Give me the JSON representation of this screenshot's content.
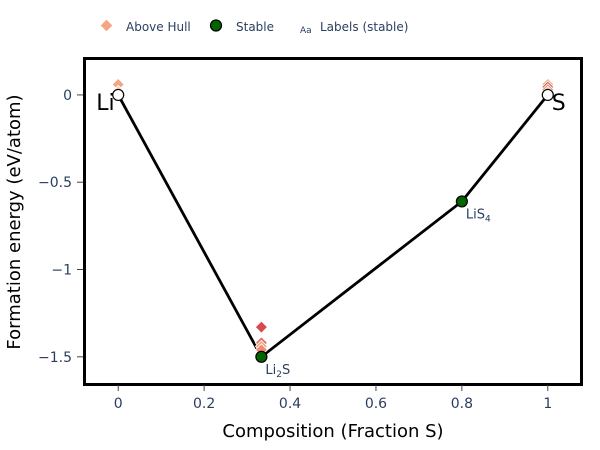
{
  "chart_data": {
    "type": "scatter",
    "xlabel": "Composition (Fraction S)",
    "ylabel": "Formation energy (eV/atom)",
    "xlim": [
      -0.075,
      1.075
    ],
    "ylim": [
      -1.65,
      0.2
    ],
    "x_ticks": [
      0,
      0.2,
      0.4,
      0.6,
      0.8,
      1
    ],
    "x_tick_labels": [
      "0",
      "0.2",
      "0.4",
      "0.6",
      "0.8",
      "1"
    ],
    "y_ticks": [
      0,
      -0.5,
      -1,
      -1.5
    ],
    "y_tick_labels": [
      "0",
      "−0.5",
      "−1",
      "−1.5"
    ],
    "grid": false,
    "legend_placement": "top-left",
    "legend": [
      {
        "label": "Above Hull",
        "marker": "diamond",
        "color": "#f4a582"
      },
      {
        "label": "Stable",
        "marker": "circle",
        "color": "#006400"
      },
      {
        "label": "Labels (stable)",
        "marker": "text",
        "glyph": "Aa"
      }
    ],
    "hull_line": {
      "x": [
        0,
        0.3333,
        0.8,
        1
      ],
      "y": [
        0,
        -1.5,
        -0.61,
        0
      ],
      "color": "#000000"
    },
    "series": [
      {
        "name": "Above Hull",
        "marker": "diamond",
        "points": [
          {
            "x": 0,
            "y": 0.06,
            "color": "#f4a582"
          },
          {
            "x": 0,
            "y": 0.02,
            "color": "#fbd3be"
          },
          {
            "x": 0.3333,
            "y": -1.33,
            "color": "#d6494e"
          },
          {
            "x": 0.3333,
            "y": -1.42,
            "color": "#e0685a"
          },
          {
            "x": 0.3333,
            "y": -1.44,
            "color": "#f4a582"
          },
          {
            "x": 0.3333,
            "y": -1.46,
            "color": "#f08b6f"
          },
          {
            "x": 1,
            "y": 0.06,
            "color": "#f4a582"
          },
          {
            "x": 1,
            "y": 0.045,
            "color": "#c0594a"
          },
          {
            "x": 1,
            "y": 0.03,
            "color": "#e88968"
          },
          {
            "x": 1,
            "y": 0.015,
            "color": "#f7b596"
          }
        ]
      },
      {
        "name": "Stable",
        "marker": "circle",
        "points": [
          {
            "x": 0,
            "y": 0,
            "color": "#ffffff"
          },
          {
            "x": 0.3333,
            "y": -1.5,
            "color": "#006400"
          },
          {
            "x": 0.8,
            "y": -0.61,
            "color": "#006400"
          },
          {
            "x": 1,
            "y": 0,
            "color": "#ffffff"
          }
        ]
      }
    ],
    "labels": [
      {
        "text": "Li",
        "x": 0,
        "y": 0,
        "kind": "element"
      },
      {
        "text": "S",
        "x": 1,
        "y": 0,
        "kind": "element"
      },
      {
        "text": "Li",
        "sub": "2",
        "tail": "S",
        "x": 0.3333,
        "y": -1.5,
        "kind": "formula"
      },
      {
        "text": "LiS",
        "sub": "4",
        "tail": "",
        "x": 0.8,
        "y": -0.61,
        "kind": "formula"
      }
    ]
  }
}
